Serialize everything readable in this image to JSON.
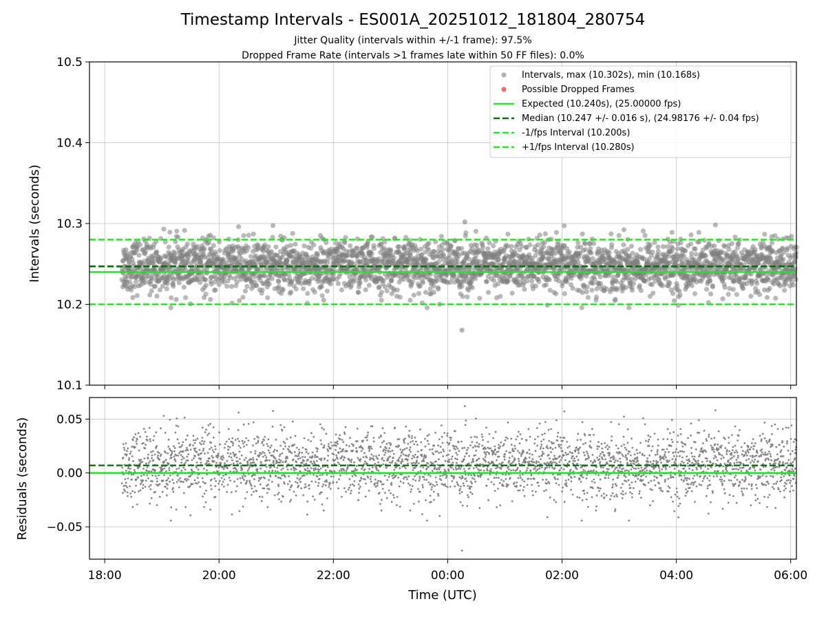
{
  "figure": {
    "title": "Timestamp Intervals - ES001A_20251012_181804_280754",
    "subtitle_1": "Jitter Quality (intervals within +/-1 frame): 97.5%",
    "subtitle_2": "Dropped Frame Rate (intervals >1 frames late within 50 FF files): 0.0%",
    "xlabel": "Time (UTC)"
  },
  "colors": {
    "points": "#808080",
    "dropped": "#ff4444",
    "expected": "#22e622",
    "median": "#0a6e0a",
    "bounds": "#22e622"
  },
  "chart_data": [
    {
      "type": "scatter",
      "ylabel": "Intervals (seconds)",
      "xlim": [
        "17:44",
        "06:06"
      ],
      "ylim": [
        10.1,
        10.5
      ],
      "yticks": [
        "10.1",
        "10.2",
        "10.3",
        "10.4",
        "10.5"
      ],
      "grid": true,
      "legend_placement": "top-right",
      "series": [
        {
          "name": "Intervals, max (10.302s), min (10.168s)",
          "kind": "scatter",
          "x_range": [
            "18:18",
            "06:06"
          ],
          "center": 10.247,
          "spread": 0.016,
          "count": 3200,
          "max": 10.302,
          "min": 10.168
        },
        {
          "name": "Possible Dropped Frames",
          "kind": "scatter",
          "values": []
        },
        {
          "name": "Expected (10.240s), (25.00000 fps)",
          "kind": "hline",
          "y": 10.24
        },
        {
          "name": "Median (10.247 +/- 0.016 s), (24.98176 +/- 0.04 fps)",
          "kind": "hline",
          "y": 10.247
        },
        {
          "name": "-1/fps Interval (10.200s)",
          "kind": "hline",
          "y": 10.2
        },
        {
          "name": "+1/fps Interval (10.280s)",
          "kind": "hline",
          "y": 10.28
        }
      ]
    },
    {
      "type": "scatter",
      "ylabel": "Residuals (seconds)",
      "xlabel": "Time (UTC)",
      "xticks": [
        "18:00",
        "20:00",
        "22:00",
        "00:00",
        "02:00",
        "04:00",
        "06:00"
      ],
      "ylim": [
        -0.08,
        0.07
      ],
      "yticks": [
        "−0.05",
        "0.00",
        "0.05"
      ],
      "ytick_values": [
        -0.05,
        0,
        0.05
      ],
      "grid": true,
      "series": [
        {
          "kind": "scatter",
          "center": 0.007,
          "spread": 0.016,
          "count": 3200,
          "max": 0.062,
          "min": -0.072
        },
        {
          "kind": "hline",
          "y": 0.0
        },
        {
          "kind": "hline",
          "y": 0.007
        }
      ]
    }
  ]
}
